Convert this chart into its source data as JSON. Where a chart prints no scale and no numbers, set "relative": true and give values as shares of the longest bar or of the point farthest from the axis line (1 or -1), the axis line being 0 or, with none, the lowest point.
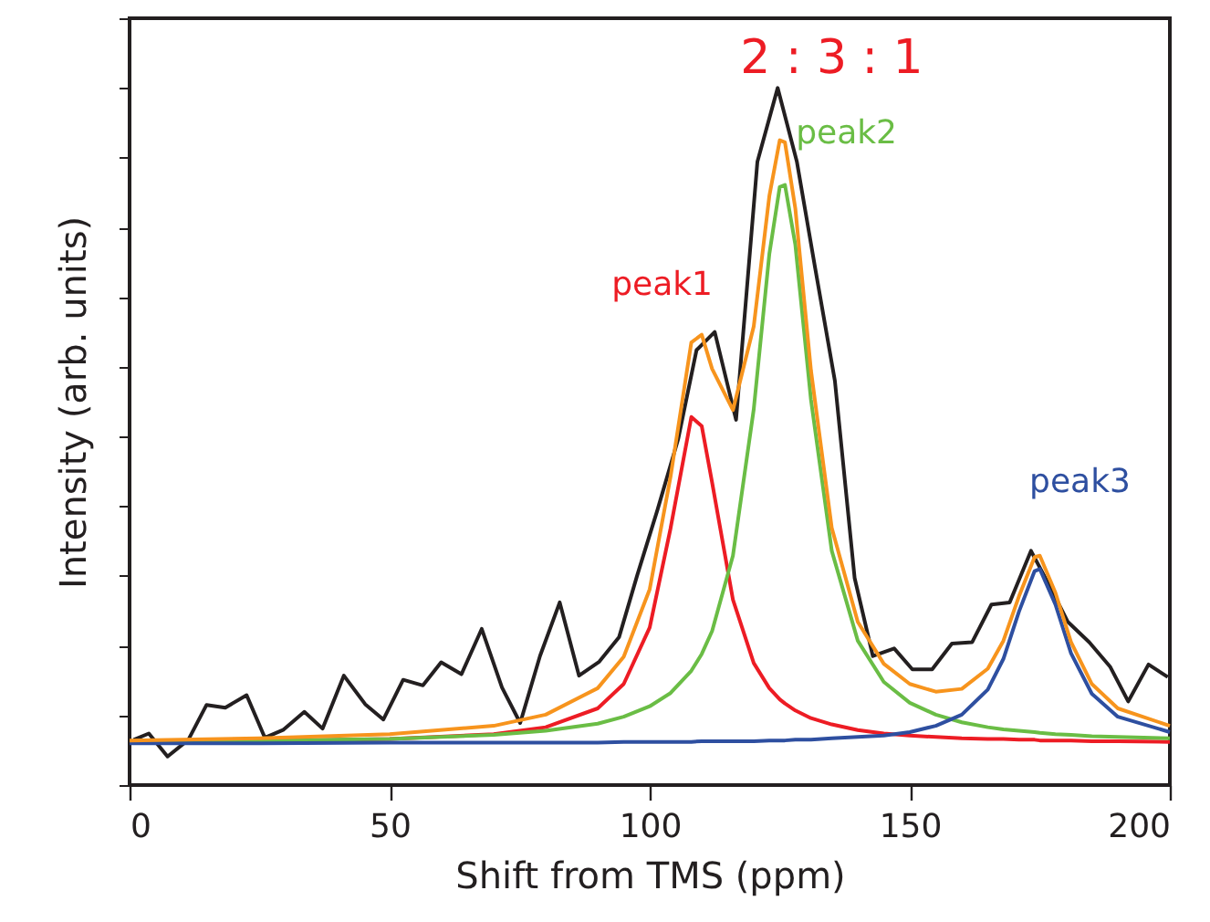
{
  "chart_data": {
    "type": "line",
    "relative": true,
    "xlabel": "Shift from TMS (ppm)",
    "ylabel": "Intensity (arb. units)",
    "xlim": [
      0,
      200
    ],
    "xticks": [
      0,
      50,
      100,
      150,
      200
    ],
    "grid": false,
    "tick_labels": "x",
    "annotations": [
      "2 : 3 : 1"
    ],
    "x": [
      0,
      25,
      50,
      70,
      80,
      90,
      95,
      100,
      104,
      108,
      110,
      112,
      116,
      120,
      123,
      125,
      126,
      128,
      131,
      135,
      140,
      145,
      150,
      155,
      160,
      165,
      168,
      171,
      174,
      175,
      178,
      181,
      185,
      190,
      200
    ],
    "series": [
      {
        "color": "#231f20",
        "x": [
          0.8,
          3.7,
          7.3,
          11.3,
          14.8,
          18.4,
          22.5,
          26.0,
          29.5,
          33.6,
          37.1,
          41.2,
          45.3,
          48.8,
          52.6,
          56.4,
          59.9,
          63.8,
          67.7,
          71.6,
          75.1,
          78.9,
          82.7,
          86.4,
          90.3,
          94.1,
          97.6,
          101.5,
          105.5,
          109.0,
          112.5,
          116.6,
          120.7,
          124.6,
          128.3,
          131.8,
          135.6,
          139.4,
          142.9,
          147.0,
          150.5,
          154.3,
          158.1,
          162.0,
          165.7,
          169.2,
          173.3,
          177.0,
          180.4,
          184.5,
          188.5,
          192.0,
          195.9,
          199.6
        ],
        "values": [
          0.065,
          0.074,
          0.041,
          0.065,
          0.115,
          0.111,
          0.129,
          0.068,
          0.079,
          0.105,
          0.081,
          0.157,
          0.116,
          0.094,
          0.151,
          0.143,
          0.176,
          0.159,
          0.224,
          0.14,
          0.089,
          0.185,
          0.262,
          0.157,
          0.177,
          0.212,
          0.301,
          0.395,
          0.497,
          0.624,
          0.65,
          0.524,
          0.894,
          1,
          0.894,
          0.742,
          0.58,
          0.297,
          0.185,
          0.196,
          0.166,
          0.166,
          0.203,
          0.205,
          0.259,
          0.262,
          0.336,
          0.284,
          0.234,
          0.205,
          0.17,
          0.12,
          0.173,
          0.155
        ]
      },
      {
        "name": "peak1",
        "color": "#ed1c24",
        "values": [
          0.062,
          0.063,
          0.066,
          0.073,
          0.083,
          0.11,
          0.145,
          0.226,
          0.368,
          0.528,
          0.515,
          0.434,
          0.266,
          0.175,
          0.139,
          0.123,
          0.117,
          0.107,
          0.096,
          0.087,
          0.079,
          0.074,
          0.071,
          0.069,
          0.067,
          0.066,
          0.066,
          0.065,
          0.065,
          0.064,
          0.064,
          0.064,
          0.063,
          0.063,
          0.062
        ]
      },
      {
        "name": "peak2",
        "color": "#6abd45",
        "values": [
          0.062,
          0.064,
          0.066,
          0.072,
          0.078,
          0.088,
          0.098,
          0.113,
          0.132,
          0.164,
          0.188,
          0.221,
          0.329,
          0.539,
          0.762,
          0.858,
          0.861,
          0.775,
          0.553,
          0.336,
          0.207,
          0.148,
          0.118,
          0.101,
          0.09,
          0.083,
          0.08,
          0.078,
          0.076,
          0.075,
          0.073,
          0.072,
          0.07,
          0.069,
          0.067
        ]
      },
      {
        "name": "peak3",
        "color": "#2e4fa0",
        "values": [
          0.06,
          0.06,
          0.061,
          0.061,
          0.061,
          0.061,
          0.062,
          0.062,
          0.062,
          0.062,
          0.063,
          0.063,
          0.063,
          0.063,
          0.064,
          0.064,
          0.064,
          0.065,
          0.065,
          0.067,
          0.069,
          0.071,
          0.076,
          0.085,
          0.101,
          0.137,
          0.181,
          0.249,
          0.307,
          0.31,
          0.259,
          0.189,
          0.131,
          0.098,
          0.076
        ]
      },
      {
        "color": "#f7941d",
        "values": [
          0.064,
          0.067,
          0.073,
          0.085,
          0.101,
          0.139,
          0.184,
          0.281,
          0.442,
          0.635,
          0.646,
          0.597,
          0.538,
          0.658,
          0.845,
          0.925,
          0.922,
          0.827,
          0.595,
          0.369,
          0.234,
          0.174,
          0.145,
          0.134,
          0.138,
          0.167,
          0.207,
          0.271,
          0.327,
          0.329,
          0.276,
          0.205,
          0.145,
          0.11,
          0.085
        ]
      }
    ]
  }
}
